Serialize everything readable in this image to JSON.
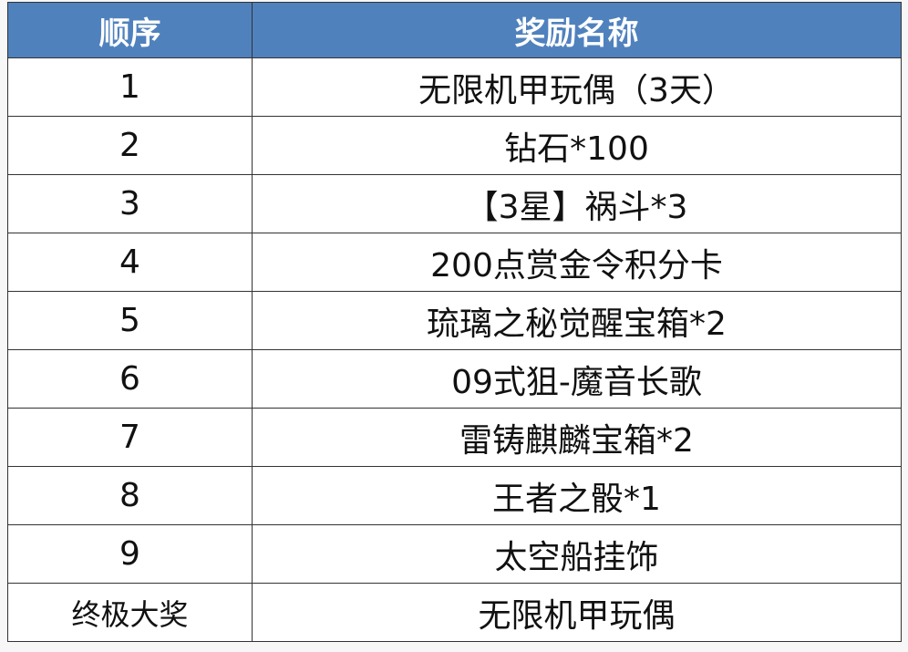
{
  "table": {
    "header_color": "#4f81bd",
    "headers": [
      "顺序",
      "奖励名称"
    ],
    "rows": [
      {
        "order": "1",
        "reward": "无限机甲玩偶（3天）"
      },
      {
        "order": "2",
        "reward": "钻石*100"
      },
      {
        "order": "3",
        "reward": "【3星】祸斗*3"
      },
      {
        "order": "4",
        "reward": "200点赏金令积分卡"
      },
      {
        "order": "5",
        "reward": "琉璃之秘觉醒宝箱*2"
      },
      {
        "order": "6",
        "reward": "09式狙-魔音长歌"
      },
      {
        "order": "7",
        "reward": "雷铸麒麟宝箱*2"
      },
      {
        "order": "8",
        "reward": "王者之骰*1"
      },
      {
        "order": "9",
        "reward": "太空船挂饰"
      },
      {
        "order": "终极大奖",
        "reward": "无限机甲玩偶"
      }
    ]
  }
}
